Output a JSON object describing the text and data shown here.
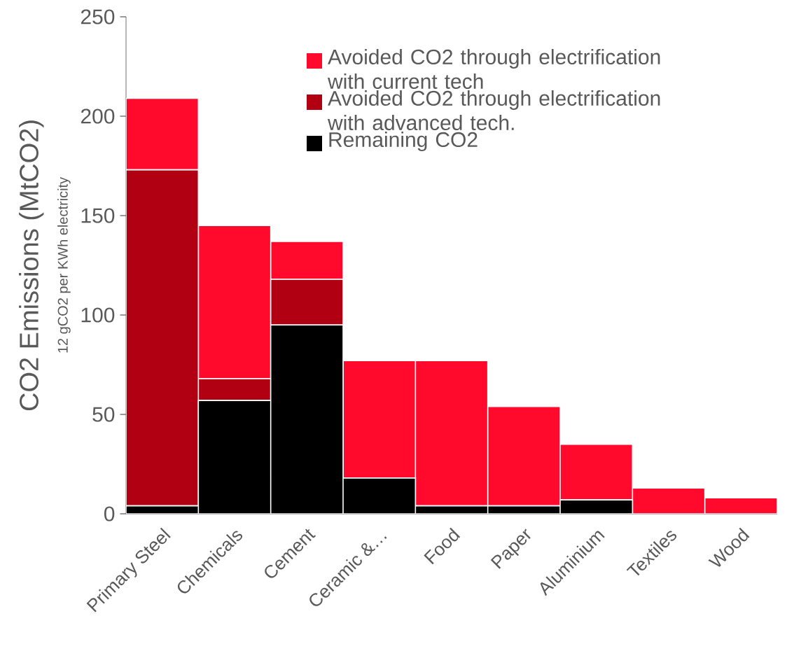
{
  "chart_data": {
    "type": "bar",
    "stacked": true,
    "ylabel": "CO2 Emissions (MtCO2)",
    "annotations": [
      "12 gCO2 per KWh electricity"
    ],
    "categories": [
      "Primary Steel",
      "Chemicals",
      "Cement",
      "Ceramic &…",
      "Food",
      "Paper",
      "Aluminium",
      "Textiles",
      "Wood"
    ],
    "series": [
      {
        "name": "Remaining CO2",
        "color": "#000000",
        "values": [
          4,
          57,
          95,
          18,
          4,
          4,
          7,
          0,
          0
        ]
      },
      {
        "name": "Avoided CO2 through electrification with advanced tech.",
        "color": "#b00012",
        "values": [
          169,
          11,
          23,
          0,
          0,
          0,
          0,
          0,
          0
        ]
      },
      {
        "name": "Avoided CO2 through electrification with current tech",
        "color": "#ff0a2d",
        "values": [
          36,
          77,
          19,
          59,
          73,
          50,
          28,
          13,
          8
        ]
      }
    ],
    "ylim": [
      0,
      250
    ],
    "yticks": [
      0,
      50,
      100,
      150,
      200,
      250
    ],
    "legend": "top right"
  }
}
